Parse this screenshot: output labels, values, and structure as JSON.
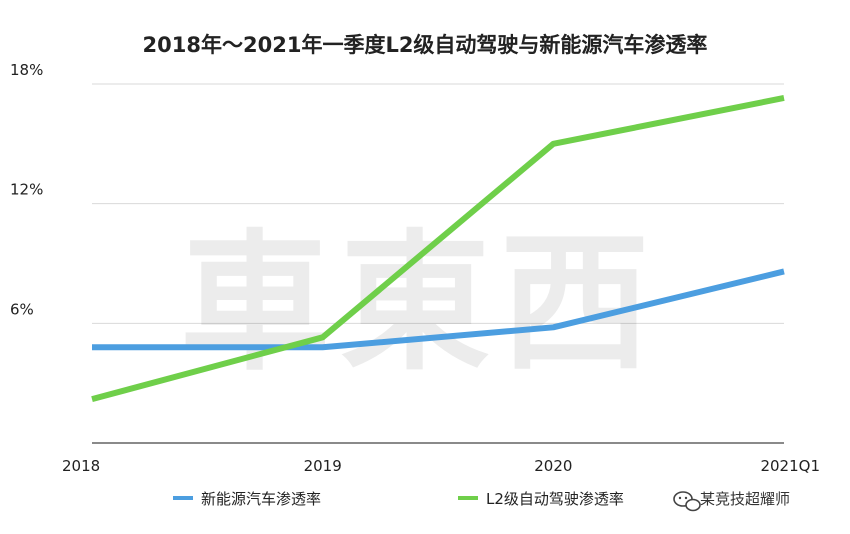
{
  "chart_data": {
    "type": "line",
    "title": "2018年～2021年一季度L2级自动驾驶与新能源汽车渗透率",
    "categories": [
      "2018",
      "2019",
      "2020",
      "2021Q1"
    ],
    "y_ticks": [
      "6%",
      "12%",
      "18%"
    ],
    "ylim": [
      0,
      18
    ],
    "grid": true,
    "legend_position": "bottom",
    "series": [
      {
        "name": "新能源汽车渗透率",
        "color": "#4c9ee0",
        "values": [
          4.8,
          4.8,
          5.8,
          8.6
        ]
      },
      {
        "name": "L2级自动驾驶渗透率",
        "color": "#6fcf4a",
        "values": [
          2.2,
          5.3,
          15.0,
          17.3
        ]
      }
    ]
  },
  "watermark": {
    "text": "車東西"
  },
  "credit": {
    "text": "某竞技超耀师"
  }
}
